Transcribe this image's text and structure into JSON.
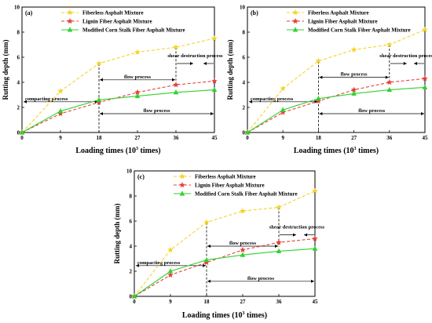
{
  "colors": {
    "fiberless": "#f5d327",
    "lignin": "#e6403a",
    "corn": "#2fd12f",
    "axis": "#000000"
  },
  "chart_data": [
    {
      "type": "line",
      "panel_label": "(a)",
      "x": [
        0,
        9,
        18,
        27,
        36,
        45
      ],
      "xticks": [
        "0",
        "9",
        "18",
        "27",
        "36",
        "45"
      ],
      "yticks": [
        "0",
        "2",
        "4",
        "6",
        "8",
        "10"
      ],
      "xlim": [
        0,
        45
      ],
      "ylim": [
        0,
        10
      ],
      "xlabel_main": "Loading times (10",
      "xlabel_sup": "3",
      "xlabel_tail": " times)",
      "ylabel": "Rutting depth (mm)",
      "legend_position": "top-right",
      "series": [
        {
          "name": "Fiberless Asphalt Mixture",
          "style": "dash",
          "marker": "star",
          "color_key": "fiberless",
          "values": [
            0,
            3.3,
            5.5,
            6.4,
            6.8,
            7.5
          ]
        },
        {
          "name": "Lignin Fiber Asphalt Mixture",
          "style": "dash",
          "marker": "star",
          "color_key": "lignin",
          "values": [
            0,
            1.5,
            2.4,
            3.2,
            3.8,
            4.1
          ]
        },
        {
          "name": "Modified Corn Stalk Fiber Asphalt Mixture",
          "style": "solid",
          "marker": "triangle",
          "color_key": "corn",
          "values": [
            0,
            1.7,
            2.6,
            2.9,
            3.2,
            3.4
          ]
        }
      ],
      "annotations": {
        "compacting": "compacting process",
        "flow_upper": "flow process",
        "flow_lower": "flow process",
        "shear": "shear destruction process",
        "v1_x": 18,
        "v1_top": 5.5,
        "v2_x": 36,
        "v2_top": 6.8,
        "compact_y": 2.45,
        "flow_upper_y": 4.2,
        "flow_lower_y": 1.5,
        "shear_y": 5.5
      }
    },
    {
      "type": "line",
      "panel_label": "(b)",
      "x": [
        0,
        9,
        18,
        27,
        36,
        45
      ],
      "xticks": [
        "0",
        "9",
        "18",
        "27",
        "36",
        "45"
      ],
      "yticks": [
        "0",
        "2",
        "4",
        "6",
        "8",
        "10"
      ],
      "xlim": [
        0,
        45
      ],
      "ylim": [
        0,
        10
      ],
      "xlabel_main": "Loading times (10",
      "xlabel_sup": "3",
      "xlabel_tail": " times)",
      "ylabel": "Rutting depth (mm)",
      "legend_position": "top-right",
      "series": [
        {
          "name": "Fiberless Asphalt Mixture",
          "style": "dash",
          "marker": "star",
          "color_key": "fiberless",
          "values": [
            0,
            3.5,
            5.7,
            6.6,
            7.0,
            8.2
          ]
        },
        {
          "name": "Lignin Fiber Asphalt Mixture",
          "style": "dash",
          "marker": "star",
          "color_key": "lignin",
          "values": [
            0,
            1.6,
            2.5,
            3.4,
            4.0,
            4.3
          ]
        },
        {
          "name": "Modified Corn Stalk Fiber Asphalt Mixture",
          "style": "solid",
          "marker": "triangle",
          "color_key": "corn",
          "values": [
            0,
            1.8,
            2.7,
            3.1,
            3.4,
            3.6
          ]
        }
      ],
      "annotations": {
        "compacting": "compacting process",
        "flow_upper": "flow process",
        "flow_lower": "flow process",
        "shear": "shear destruction process",
        "v1_x": 18,
        "v1_top": 5.7,
        "v2_x": 36,
        "v2_top": 7.0,
        "compact_y": 2.45,
        "flow_upper_y": 4.4,
        "flow_lower_y": 1.5,
        "shear_y": 5.5
      }
    },
    {
      "type": "line",
      "panel_label": "(c)",
      "x": [
        0,
        9,
        18,
        27,
        36,
        45
      ],
      "xticks": [
        "0",
        "9",
        "18",
        "27",
        "36",
        "45"
      ],
      "yticks": [
        "0",
        "2",
        "4",
        "6",
        "8",
        "10"
      ],
      "xlim": [
        0,
        45
      ],
      "ylim": [
        0,
        10
      ],
      "xlabel_main": "Loading times (10",
      "xlabel_sup": "3",
      "xlabel_tail": " times)",
      "ylabel": "Rutting depth (mm)",
      "legend_position": "top-right",
      "series": [
        {
          "name": "Fiberless Asphalt Mixture",
          "style": "dash",
          "marker": "star",
          "color_key": "fiberless",
          "values": [
            0,
            3.7,
            5.9,
            6.8,
            7.1,
            8.4
          ]
        },
        {
          "name": "Lignin Fiber Asphalt Mixture",
          "style": "dash",
          "marker": "star",
          "color_key": "lignin",
          "values": [
            0,
            1.7,
            2.7,
            3.7,
            4.3,
            4.6
          ]
        },
        {
          "name": "Modified Corn Stalk Fiber Asphalt Mixture",
          "style": "solid",
          "marker": "triangle",
          "color_key": "corn",
          "values": [
            0,
            2.0,
            2.9,
            3.3,
            3.6,
            3.8
          ]
        }
      ],
      "annotations": {
        "compacting": "compacting process",
        "flow_upper": "flow process",
        "flow_lower": "flow process",
        "shear": "shear destruction process",
        "v1_x": 18,
        "v1_top": 5.9,
        "v2_x": 36,
        "v2_top": 7.1,
        "compact_y": 2.45,
        "flow_upper_y": 4.0,
        "flow_lower_y": 1.2,
        "shear_y": 4.9
      }
    }
  ]
}
